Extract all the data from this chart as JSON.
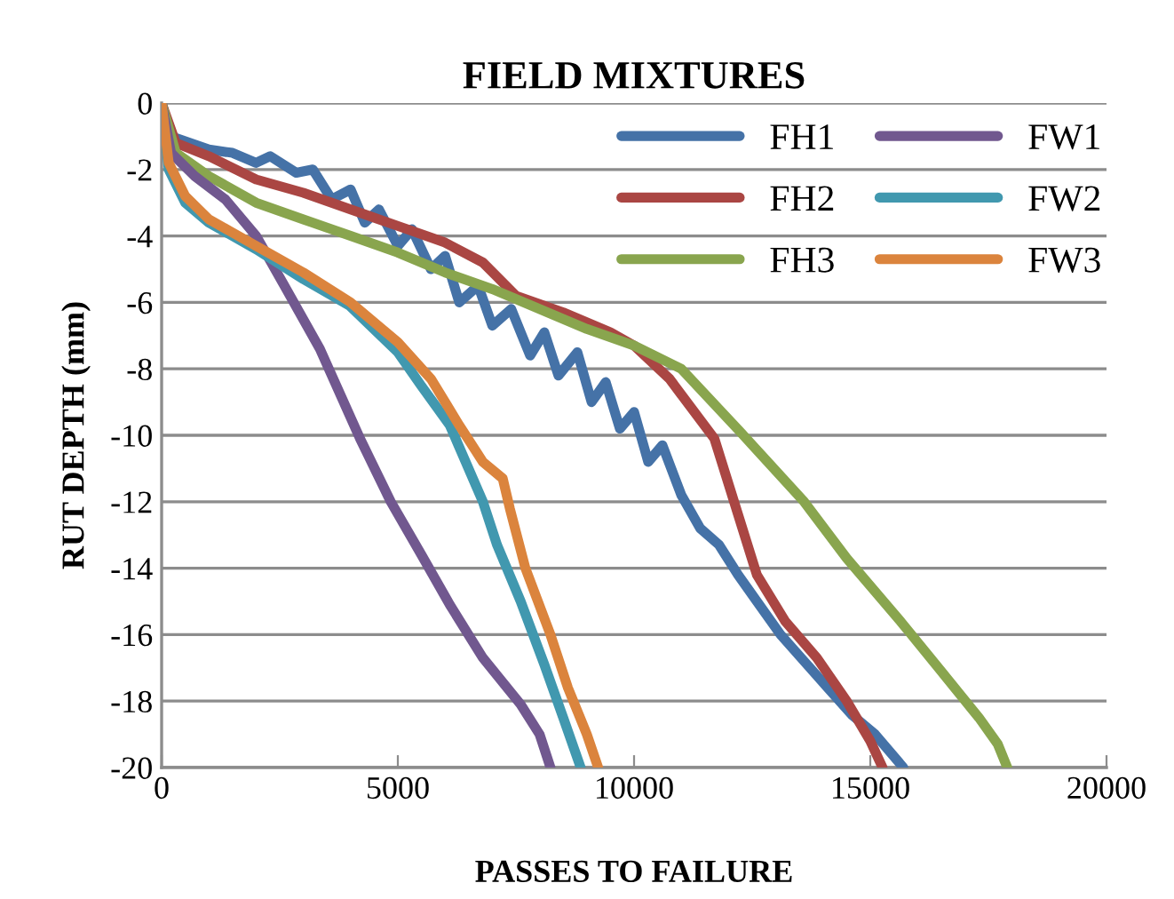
{
  "chart_data": {
    "type": "line",
    "title": "FIELD MIXTURES",
    "xlabel": "PASSES TO FAILURE",
    "ylabel": "RUT DEPTH (mm)",
    "xlim": [
      0,
      20000
    ],
    "xticks": [
      0,
      5000,
      10000,
      15000,
      20000
    ],
    "ylim": [
      -20,
      0
    ],
    "yticks": [
      0,
      -2,
      -4,
      -6,
      -8,
      -10,
      -12,
      -14,
      -16,
      -18,
      -20
    ],
    "grid": "y",
    "legend": "top right",
    "marker": "none",
    "line_style": "solid",
    "series": [
      {
        "name": "FH1",
        "color": "#4572a7",
        "x": [
          0,
          200,
          1000,
          1500,
          2000,
          2300,
          2850,
          3200,
          3600,
          4000,
          4300,
          4600,
          5000,
          5300,
          5700,
          6000,
          6300,
          6700,
          7000,
          7400,
          7800,
          8100,
          8400,
          8800,
          9100,
          9400,
          9700,
          10000,
          10300,
          10600,
          11000,
          11400,
          11800,
          12200,
          12600,
          13100,
          13600,
          14100,
          14600,
          15100,
          15700
        ],
        "values": [
          0,
          -1.0,
          -1.4,
          -1.5,
          -1.8,
          -1.6,
          -2.1,
          -2.0,
          -2.9,
          -2.6,
          -3.6,
          -3.2,
          -4.3,
          -3.8,
          -5.0,
          -4.6,
          -6.0,
          -5.5,
          -6.7,
          -6.2,
          -7.6,
          -6.9,
          -8.2,
          -7.5,
          -9.0,
          -8.4,
          -9.8,
          -9.3,
          -10.8,
          -10.3,
          -11.8,
          -12.8,
          -13.3,
          -14.2,
          -15.0,
          -16.0,
          -16.8,
          -17.6,
          -18.4,
          -19.0,
          -20
        ]
      },
      {
        "name": "FH2",
        "color": "#aa4643",
        "x": [
          0,
          300,
          1000,
          2000,
          3000,
          4000,
          5000,
          6000,
          6800,
          7500,
          8500,
          9500,
          10000,
          10750,
          11700,
          12600,
          13200,
          13870,
          14500,
          15000,
          15260
        ],
        "values": [
          0,
          -1.2,
          -1.6,
          -2.3,
          -2.7,
          -3.2,
          -3.7,
          -4.2,
          -4.8,
          -5.8,
          -6.3,
          -6.9,
          -7.3,
          -8.3,
          -10.1,
          -14.2,
          -15.6,
          -16.7,
          -18.0,
          -19.2,
          -20
        ]
      },
      {
        "name": "FH3",
        "color": "#89a54e",
        "x": [
          0,
          300,
          1000,
          2000,
          3000,
          4000,
          5000,
          6000,
          7000,
          8000,
          9000,
          10000,
          11000,
          12250,
          13600,
          14500,
          15640,
          16500,
          17300,
          17700,
          17900
        ],
        "values": [
          0,
          -1.5,
          -2.2,
          -3.0,
          -3.5,
          -4.0,
          -4.5,
          -5.1,
          -5.6,
          -6.2,
          -6.8,
          -7.3,
          -8.0,
          -9.9,
          -12.0,
          -13.7,
          -15.6,
          -17.1,
          -18.5,
          -19.3,
          -20
        ]
      },
      {
        "name": "FW1",
        "color": "#71588f",
        "x": [
          0,
          200,
          700,
          1350,
          2000,
          2600,
          3350,
          4200,
          4850,
          5500,
          6100,
          6800,
          7600,
          8000,
          8230
        ],
        "values": [
          0,
          -1.5,
          -2.2,
          -2.9,
          -4.0,
          -5.5,
          -7.4,
          -10.1,
          -12.0,
          -13.6,
          -15.1,
          -16.7,
          -18.1,
          -19.0,
          -20
        ]
      },
      {
        "name": "FW2",
        "color": "#4198af",
        "x": [
          0,
          150,
          500,
          1000,
          2000,
          3000,
          3980,
          5000,
          5490,
          6100,
          6800,
          7100,
          7600,
          8100,
          8500,
          8870
        ],
        "values": [
          0,
          -2.0,
          -3.0,
          -3.6,
          -4.4,
          -5.3,
          -6.1,
          -7.5,
          -8.5,
          -9.7,
          -12.0,
          -13.3,
          -15.0,
          -16.9,
          -18.5,
          -20
        ]
      },
      {
        "name": "FW3",
        "color": "#db843d",
        "x": [
          0,
          150,
          500,
          1000,
          2000,
          3000,
          4000,
          5000,
          5700,
          6300,
          6800,
          7220,
          7370,
          7700,
          8230,
          8600,
          9000,
          9240
        ],
        "values": [
          0,
          -1.8,
          -2.8,
          -3.5,
          -4.3,
          -5.1,
          -6.0,
          -7.2,
          -8.3,
          -9.7,
          -10.8,
          -11.3,
          -12.2,
          -14.0,
          -16.0,
          -17.6,
          -19.0,
          -20
        ]
      }
    ]
  }
}
